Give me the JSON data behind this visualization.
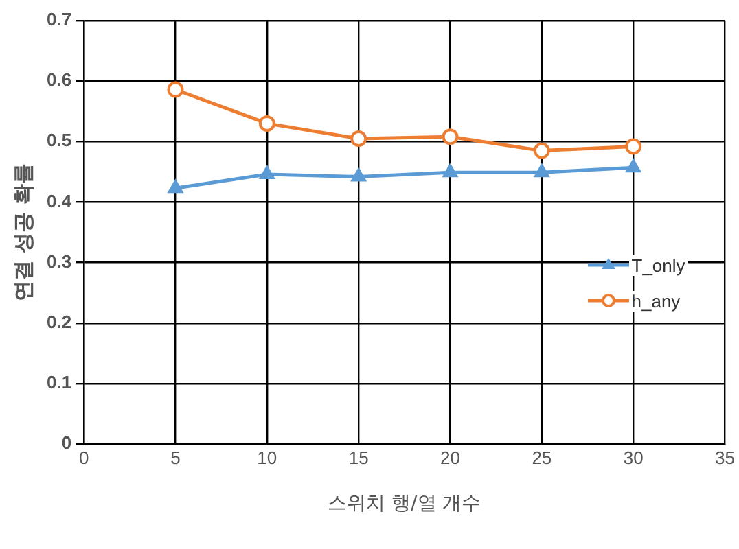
{
  "chart_data": {
    "type": "line",
    "xlabel": "스위치 행/열 개수",
    "ylabel": "연결 성공 확률",
    "x": [
      5,
      10,
      15,
      20,
      25,
      30
    ],
    "series": [
      {
        "name": "T_only",
        "color": "#5b9bd5",
        "marker": "triangle",
        "values": [
          0.423,
          0.446,
          0.442,
          0.449,
          0.449,
          0.457
        ]
      },
      {
        "name": "h_any",
        "color": "#ed7d31",
        "marker": "circle",
        "values": [
          0.586,
          0.53,
          0.505,
          0.508,
          0.485,
          0.492
        ]
      }
    ],
    "xlim": [
      0,
      35
    ],
    "xticks": [
      0,
      5,
      10,
      15,
      20,
      25,
      30,
      35
    ],
    "ylim": [
      0,
      0.7
    ],
    "yticks": [
      0,
      0.1,
      0.2,
      0.3,
      0.4,
      0.5,
      0.6,
      0.7
    ],
    "grid": true,
    "legend": "right"
  }
}
